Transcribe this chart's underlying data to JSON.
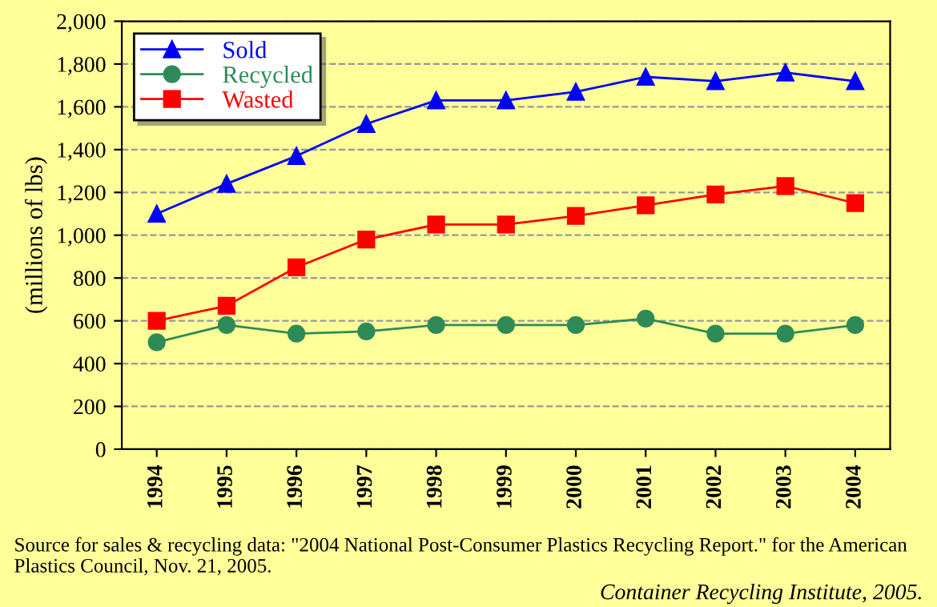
{
  "chart_data": {
    "type": "line",
    "ylabel": "(millions of lbs)",
    "categories": [
      "1994",
      "1995",
      "1996",
      "1997",
      "1998",
      "1999",
      "2000",
      "2001",
      "2002",
      "2003",
      "2004"
    ],
    "series": [
      {
        "name": "Sold",
        "color": "#0000ff",
        "marker": "triangle",
        "values": [
          1100,
          1240,
          1370,
          1520,
          1630,
          1630,
          1670,
          1740,
          1720,
          1760,
          1720
        ]
      },
      {
        "name": "Recycled",
        "color": "#2e8b57",
        "marker": "circle",
        "values": [
          500,
          580,
          540,
          550,
          580,
          580,
          580,
          610,
          540,
          540,
          580
        ]
      },
      {
        "name": "Wasted",
        "color": "#ff0000",
        "marker": "square",
        "values": [
          600,
          670,
          850,
          980,
          1050,
          1050,
          1090,
          1140,
          1190,
          1230,
          1150
        ]
      }
    ],
    "ylim": [
      0,
      2000
    ],
    "yticks": [
      0,
      200,
      400,
      600,
      800,
      {
        "value": 1000,
        "label": "1,000"
      },
      {
        "value": 1200,
        "label": "1,200"
      },
      {
        "value": 1400,
        "label": "1,400"
      },
      {
        "value": 1600,
        "label": "1,600"
      },
      {
        "value": 1800,
        "label": "1,800"
      },
      {
        "value": 2000,
        "label": "2,000"
      }
    ],
    "grid": "y",
    "legend": "top left",
    "annotations": [
      "Source for sales & recycling data: \"2004 National Post-Consumer Plastics Recycling Report.\" for the American Plastics Council, Nov. 21, 2005.",
      "Container Recycling Institute, 2005."
    ]
  }
}
